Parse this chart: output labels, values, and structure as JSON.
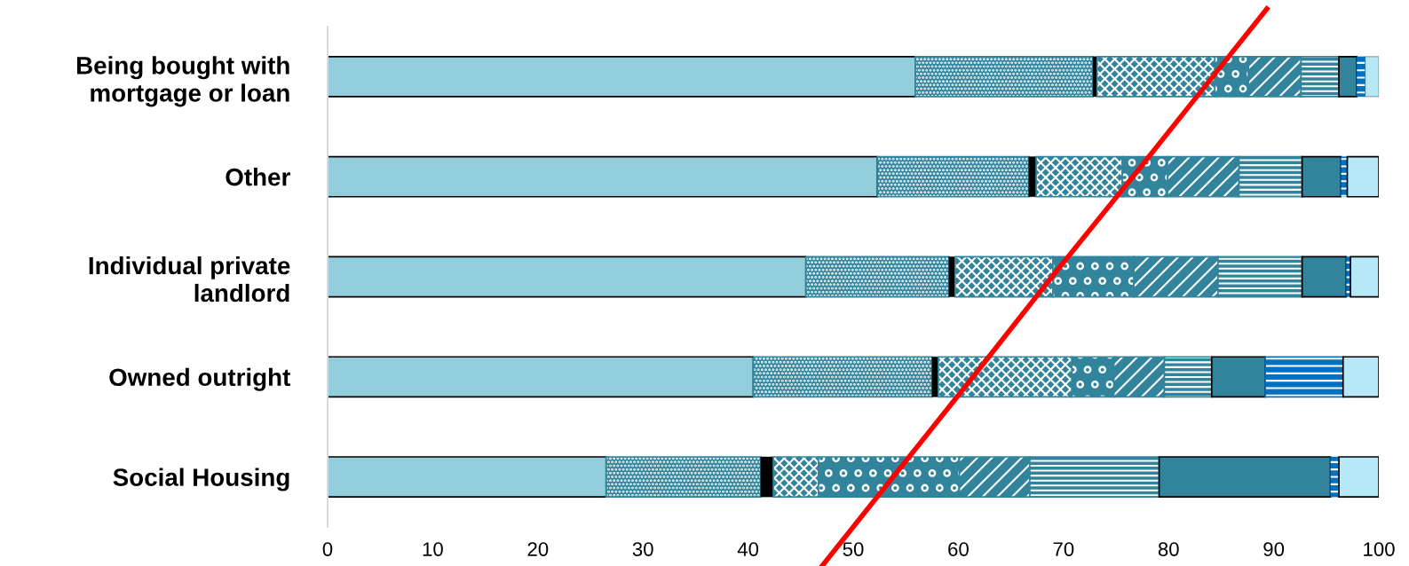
{
  "chart_data": {
    "type": "bar",
    "orientation": "horizontal",
    "stacked": true,
    "categories": [
      "Being bought with\nmortgage or loan",
      "Other",
      "Individual private\nlandlord",
      "Owned outright",
      "Social Housing"
    ],
    "series": [
      {
        "color": "#92cddc",
        "values": [
          55.9,
          52.3,
          45.5,
          40.5,
          26.5
        ]
      },
      {
        "color": "#31849b",
        "values": [
          16.9,
          14.4,
          13.6,
          17.0,
          14.7
        ]
      },
      {
        "color": "#000000",
        "values": [
          0.4,
          0.7,
          0.6,
          0.6,
          1.2
        ]
      },
      {
        "color": "#31849b",
        "values": [
          11.2,
          8.2,
          9.3,
          12.7,
          4.3
        ]
      },
      {
        "color": "#31849b",
        "values": [
          3.2,
          4.3,
          7.7,
          4.0,
          13.4
        ]
      },
      {
        "color": "#31849b",
        "values": [
          5.0,
          6.8,
          8.0,
          4.8,
          6.7
        ]
      },
      {
        "color": "#31849b",
        "values": [
          3.6,
          6.0,
          8.0,
          4.5,
          12.3
        ]
      },
      {
        "color": "#31849b",
        "values": [
          1.7,
          3.7,
          4.2,
          5.1,
          16.3
        ]
      },
      {
        "color": "#0070c0",
        "values": [
          0.8,
          0.6,
          0.4,
          7.4,
          0.8
        ]
      },
      {
        "color": "#b7e8f8",
        "values": [
          1.3,
          3.0,
          2.7,
          3.4,
          3.8
        ]
      },
      {
        "type": "line",
        "color": "#ff0000",
        "values": [
          84.2,
          76.6,
          68.9,
          61.4,
          53.8
        ]
      }
    ],
    "xlim": [
      0,
      100
    ],
    "xticks": [
      0,
      10,
      20,
      30,
      40,
      50,
      60,
      70,
      80,
      90,
      100
    ],
    "grid": false,
    "legend": false
  }
}
